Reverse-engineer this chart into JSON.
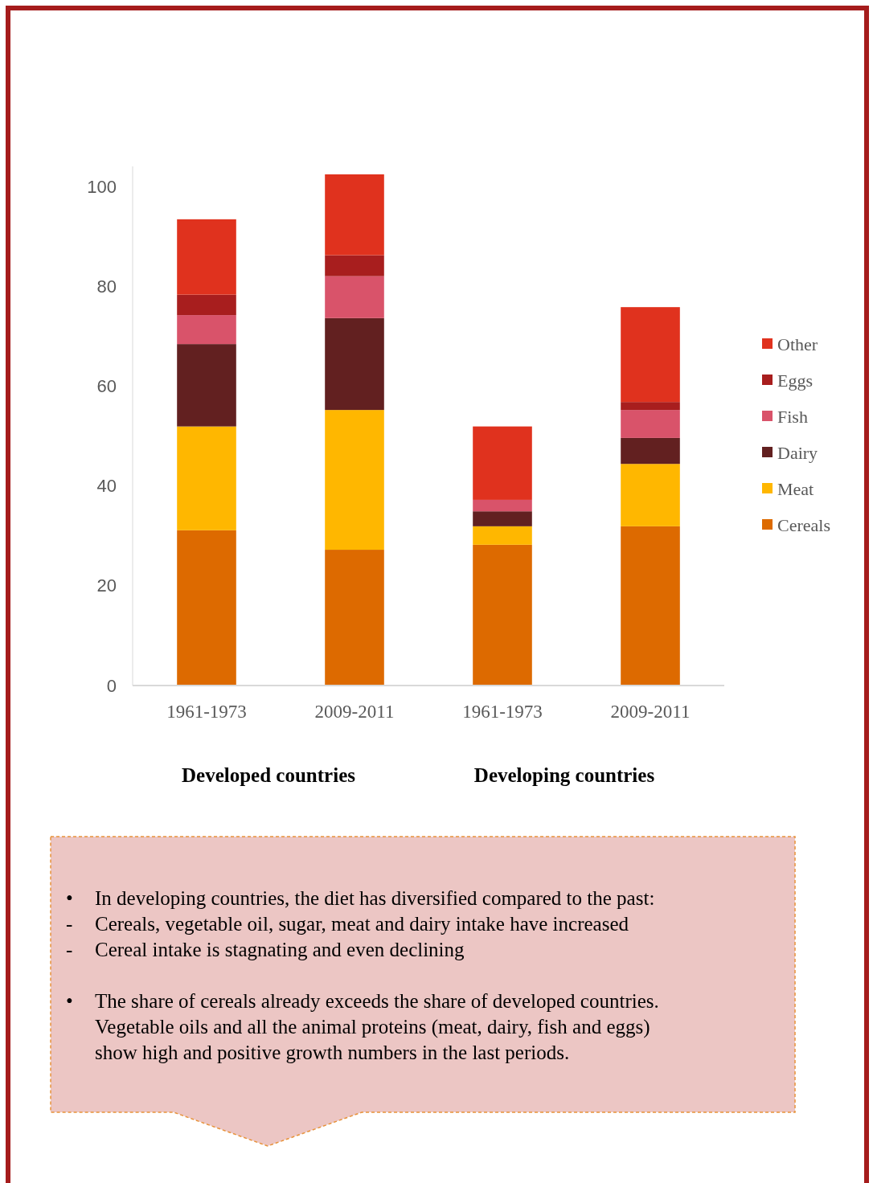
{
  "chart_data": {
    "type": "bar",
    "stacked": true,
    "categories": [
      "1961-1973",
      "2009-2011",
      "1961-1973",
      "2009-2011"
    ],
    "series": [
      {
        "name": "Cereals",
        "color": "#dd6a00",
        "values": [
          31.1,
          27.2,
          28.2,
          31.9
        ]
      },
      {
        "name": "Meat",
        "color": "#ffb700",
        "values": [
          20.8,
          28.0,
          3.7,
          12.5
        ]
      },
      {
        "name": "Dairy",
        "color": "#622020",
        "values": [
          16.5,
          18.4,
          3.0,
          5.2
        ]
      },
      {
        "name": "Fish",
        "color": "#d9536a",
        "values": [
          5.8,
          8.4,
          2.3,
          5.6
        ]
      },
      {
        "name": "Eggs",
        "color": "#a81e1e",
        "values": [
          4.1,
          4.2,
          0,
          1.6
        ]
      },
      {
        "name": "Other",
        "color": "#e0321e",
        "values": [
          15.1,
          16.2,
          14.7,
          19.0
        ]
      }
    ],
    "ylim": [
      0,
      104
    ],
    "yticks": [
      0,
      20,
      40,
      60,
      80,
      100
    ],
    "legend": "right",
    "annotations": [
      "Developed countries",
      "Developing countries",
      "• In developing countries, the diet has diversified compared to the past:",
      "- Cereals, vegetable oil, sugar, meat and dairy intake have increased",
      "- Cereal intake is stagnating and even declining",
      "• The share of cereals already exceeds the share of developed countries. Vegetable oils and all the animal proteins (meat, dairy, fish and eggs) show high and positive growth numbers in the last periods."
    ]
  }
}
